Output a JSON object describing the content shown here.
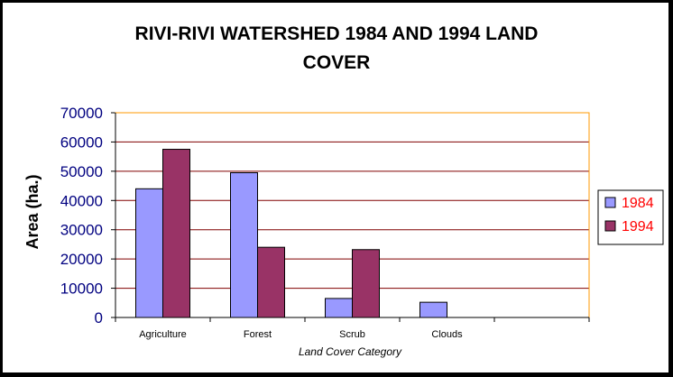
{
  "chart_data": {
    "type": "bar",
    "title_lines": [
      "RIVI-RIVI WATERSHED 1984 AND 1994 LAND",
      "COVER"
    ],
    "xlabel": "Land Cover Category",
    "ylabel": "Area (ha.)",
    "categories": [
      "Agriculture",
      "Forest",
      "Scrub",
      "Clouds",
      ""
    ],
    "series": [
      {
        "name": "1984",
        "color": "#9999ff",
        "values": [
          44000,
          49500,
          6500,
          5200,
          null
        ]
      },
      {
        "name": "1994",
        "color": "#993366",
        "values": [
          57500,
          24000,
          23200,
          null,
          null
        ]
      }
    ],
    "ylim": [
      0,
      70000
    ],
    "yticks": [
      "0",
      "10000",
      "20000",
      "30000",
      "40000",
      "50000",
      "60000",
      "70000"
    ],
    "grid": true,
    "gridline_color": "#800000",
    "plot_border_color": "#ff9900",
    "legend_position": "right"
  }
}
